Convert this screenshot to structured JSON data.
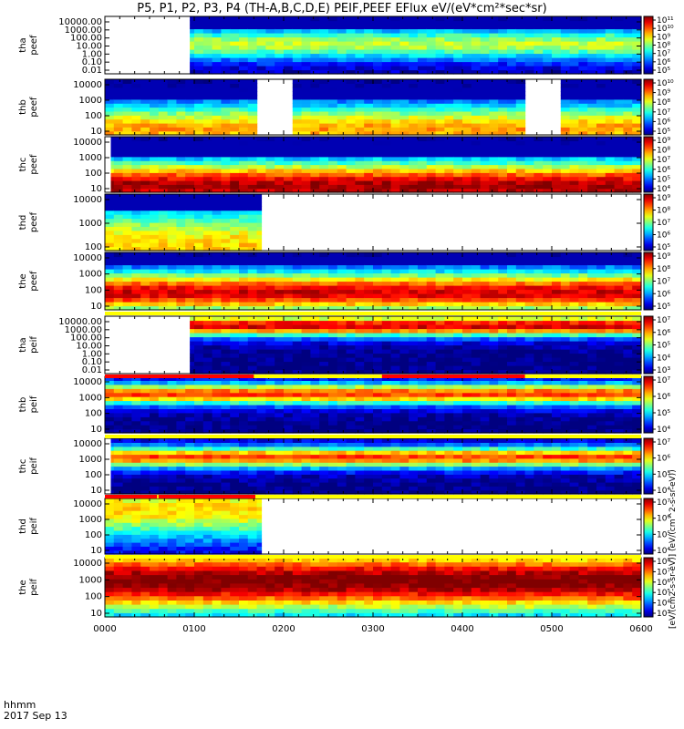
{
  "title": "P5, P1, P2, P3, P4 (TH-A,B,C,D,E) PEIF,PEEF EFlux eV/(eV*cm²*sec*sr)",
  "footer": {
    "hhmm": "hhmm",
    "date": "2017 Sep 13"
  },
  "colorbar_unit_label": "[eV/(cm2-s-sr-eV)] (eV/(cm^2-s-sr-eV))",
  "chart_data": {
    "type": "heatmap",
    "xlabel": "",
    "x_ticks": [
      "0000",
      "0100",
      "0200",
      "0300",
      "0400",
      "0500",
      "0600"
    ],
    "xlim_minutes": [
      0,
      360
    ],
    "panels": [
      {
        "probe": "tha",
        "species": "peef",
        "yticks": [
          "10000.00",
          "1000.00",
          "100.00",
          "10.00",
          "1.00",
          "0.10",
          "0.01"
        ],
        "ylog": [
          -2,
          4.3
        ],
        "data_start_min": 57,
        "data_end_min": 360,
        "gaps": [],
        "peak_log_e": 1.3,
        "width": 1.2,
        "level": 0.45,
        "cb_ticks": [
          "10¹¹",
          "10¹⁰",
          "10⁹",
          "10⁸",
          "10⁷",
          "10⁶",
          "10⁵"
        ],
        "flag_bar": false
      },
      {
        "probe": "thb",
        "species": "peef",
        "yticks": [
          "10000",
          "1000",
          "100",
          "10"
        ],
        "ylog": [
          0.9,
          4.35
        ],
        "data_start_min": 0,
        "data_end_min": 360,
        "gaps": [
          [
            102,
            122
          ],
          [
            284,
            304
          ]
        ],
        "peak_log_e": 1.3,
        "width": 1.1,
        "level": 0.6,
        "cb_ticks": [
          "10¹⁰",
          "10⁹",
          "10⁸",
          "10⁷",
          "10⁶",
          "10⁵"
        ],
        "flag_bar": false
      },
      {
        "probe": "thc",
        "species": "peef",
        "yticks": [
          "10000",
          "1000",
          "100",
          "10"
        ],
        "ylog": [
          0.9,
          4.35
        ],
        "data_start_min": 4,
        "data_end_min": 360,
        "gaps": [],
        "peak_log_e": 1.3,
        "width": 1.1,
        "level": 0.85,
        "cb_ticks": [
          "10⁹",
          "10⁸",
          "10⁷",
          "10⁶",
          "10⁵",
          "10⁴"
        ],
        "flag_bar": false
      },
      {
        "probe": "thd",
        "species": "peef",
        "yticks": [
          "10000",
          "1000",
          "100"
        ],
        "ylog": [
          1.4,
          4.35
        ],
        "data_start_min": 0,
        "data_end_min": 105,
        "gaps": [],
        "peak_log_e": 1.7,
        "width": 1.4,
        "level": 0.55,
        "cb_ticks": [
          "10⁹",
          "10⁸",
          "10⁷",
          "10⁶",
          "10⁵"
        ],
        "flag_bar": false
      },
      {
        "probe": "the",
        "species": "peef",
        "yticks": [
          "10000",
          "1000",
          "100",
          "10"
        ],
        "ylog": [
          0.8,
          4.35
        ],
        "data_start_min": 0,
        "data_end_min": 360,
        "gaps": [],
        "peak_log_e": 1.9,
        "width": 0.9,
        "level": 0.8,
        "cb_ticks": [
          "10⁹",
          "10⁸",
          "10⁷",
          "10⁶",
          "10⁵"
        ],
        "flag_bar": true
      },
      {
        "probe": "tha",
        "species": "peif",
        "yticks": [
          "10000.00",
          "1000.00",
          "100.00",
          "10.00",
          "1.00",
          "0.10",
          "0.01"
        ],
        "ylog": [
          -2,
          4.3
        ],
        "data_start_min": 57,
        "data_end_min": 360,
        "gaps": [],
        "peak_log_e": 3.3,
        "width": 0.8,
        "level": 0.8,
        "cb_ticks": [
          "10⁷",
          "10⁶",
          "10⁵",
          "10⁴",
          "10³"
        ],
        "flag_bar": true
      },
      {
        "probe": "thb",
        "species": "peif",
        "yticks": [
          "10000",
          "1000",
          "100",
          "10"
        ],
        "ylog": [
          0.9,
          4.35
        ],
        "data_start_min": 0,
        "data_end_min": 360,
        "gaps": [],
        "peak_log_e": 3.3,
        "width": 0.45,
        "level": 0.7,
        "cb_ticks": [
          "10⁷",
          "10⁶",
          "10⁵",
          "10⁴"
        ],
        "flag_bar": true
      },
      {
        "probe": "thc",
        "species": "peif",
        "yticks": [
          "10000",
          "1000",
          "100",
          "10"
        ],
        "ylog": [
          0.9,
          4.35
        ],
        "data_start_min": 4,
        "data_end_min": 360,
        "gaps": [],
        "peak_log_e": 3.2,
        "width": 0.45,
        "level": 0.7,
        "cb_ticks": [
          "10⁷",
          "10⁶",
          "10⁵",
          "10⁴"
        ],
        "flag_bar": true
      },
      {
        "probe": "thd",
        "species": "peif",
        "yticks": [
          "10000",
          "1000",
          "100",
          "10"
        ],
        "ylog": [
          0.9,
          4.35
        ],
        "data_start_min": 0,
        "data_end_min": 105,
        "gaps": [],
        "peak_log_e": 3.7,
        "width": 1.3,
        "level": 0.55,
        "cb_ticks": [
          "10⁷",
          "10⁶",
          "10⁵",
          "10⁴"
        ],
        "flag_bar": true
      },
      {
        "probe": "the",
        "species": "peif",
        "yticks": [
          "10000",
          "1000",
          "100",
          "10"
        ],
        "ylog": [
          0.9,
          4.35
        ],
        "data_start_min": 0,
        "data_end_min": 360,
        "gaps": [],
        "peak_log_e": 3.0,
        "width": 1.3,
        "level": 0.9,
        "cb_ticks": [
          "10⁸",
          "10⁷",
          "10⁶",
          "10⁵",
          "10⁴",
          "10³"
        ],
        "flag_bar": false
      }
    ],
    "flag_bars": [
      {
        "after_panel": 4,
        "color": "#ffff00",
        "red_segments_min": []
      },
      {
        "after_panel": 5,
        "color": "#ffff00",
        "red_segments_min": [
          [
            0,
            100
          ],
          [
            186,
            282
          ]
        ]
      },
      {
        "after_panel": 6,
        "color": "#ffff00",
        "red_segments_min": []
      },
      {
        "after_panel": 7,
        "color": "#ffff00",
        "red_segments_min": [
          [
            0,
            35
          ],
          [
            36,
            101
          ]
        ]
      },
      {
        "after_panel": 8,
        "color": "#ffff00",
        "red_segments_min": []
      }
    ]
  }
}
